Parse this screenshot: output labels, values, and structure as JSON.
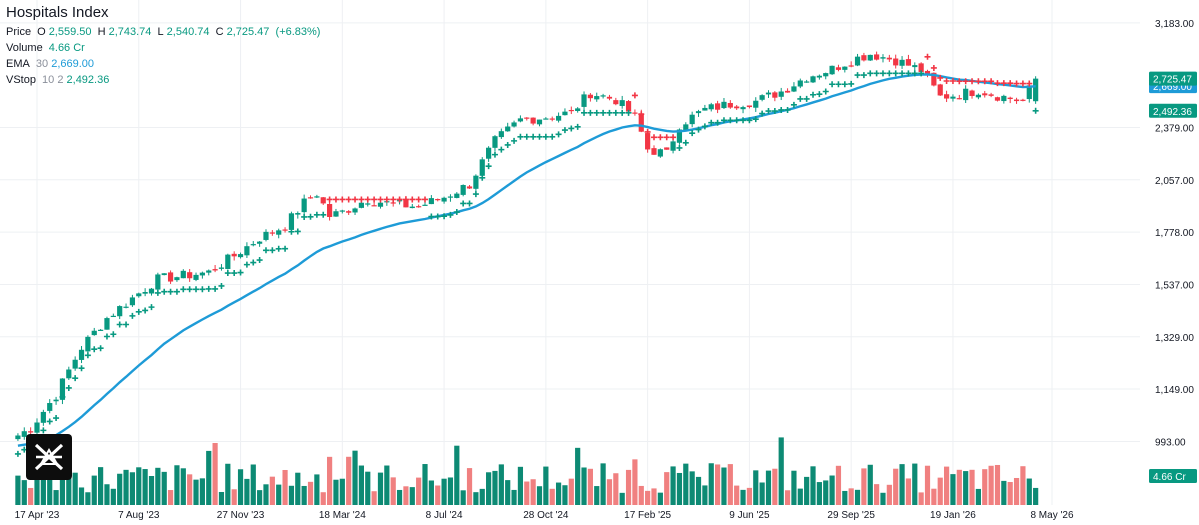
{
  "legend": {
    "title": "Hospitals Index",
    "price_label": "Price",
    "o_key": "O",
    "o_val": "2,559.50",
    "h_key": "H",
    "h_val": "2,743.74",
    "l_key": "L",
    "l_val": "2,540.74",
    "c_key": "C",
    "c_val": "2,725.47",
    "change": "(+6.83%)",
    "volume_label": "Volume",
    "volume_val": "4.66 Cr",
    "ema_label": "EMA",
    "ema_param": "30",
    "ema_val": "2,669.00",
    "vstop_label": "VStop",
    "vstop_param": "10 2",
    "vstop_val": "2,492.36"
  },
  "price_tags": {
    "close": "2,725.47",
    "ema": "2,669.00",
    "vstop": "2,492.36",
    "volume": "4.66 Cr"
  },
  "colors": {
    "up": "#089981",
    "down": "#f23645",
    "vol_up": "#0d8a74",
    "vol_down": "#f08080",
    "ema": "#1e9bd7",
    "grid": "#eef0f3",
    "axis_text": "#131722",
    "logo_bg": "#0d0d0d"
  },
  "logo_icon": "tradingview-logo-icon",
  "chart_data": {
    "type": "candlestick",
    "title": "Hospitals Index",
    "period": "weekly",
    "y_scale": "log",
    "y_ticks": [
      "3,183.00",
      "2,379.00",
      "2,057.00",
      "1,778.00",
      "1,537.00",
      "1,329.00",
      "1,149.00",
      "993.00"
    ],
    "x_ticks": [
      "17 Apr '23",
      "7 Aug '23",
      "27 Nov '23",
      "18 Mar '24",
      "8 Jul '24",
      "28 Oct '24",
      "17 Feb '25",
      "9 Jun '25",
      "29 Sep '25",
      "19 Jan '26",
      "8 May '26"
    ],
    "grid": true,
    "series": [
      {
        "name": "Price",
        "kind": "ohlc",
        "last": {
          "o": 2559.5,
          "h": 2743.74,
          "l": 2540.74,
          "c": 2725.47
        }
      },
      {
        "name": "EMA",
        "kind": "line",
        "period": 30,
        "last": 2669.0
      },
      {
        "name": "VStop",
        "kind": "cross-markers",
        "params": "10 2",
        "last": 2492.36
      },
      {
        "name": "Volume",
        "kind": "bars",
        "last": "4.66 Cr"
      }
    ],
    "path_anchors": [
      [
        "2023-03-27",
        1010
      ],
      [
        "2023-04-10",
        1030
      ],
      [
        "2023-05-08",
        1130
      ],
      [
        "2023-06-05",
        1290
      ],
      [
        "2023-07-03",
        1400
      ],
      [
        "2023-07-31",
        1480
      ],
      [
        "2023-08-28",
        1560
      ],
      [
        "2023-09-25",
        1575
      ],
      [
        "2023-10-23",
        1590
      ],
      [
        "2023-11-20",
        1665
      ],
      [
        "2023-12-18",
        1750
      ],
      [
        "2024-01-15",
        1810
      ],
      [
        "2024-02-05",
        1930
      ],
      [
        "2024-02-19",
        1980
      ],
      [
        "2024-03-04",
        1860
      ],
      [
        "2024-03-18",
        1880
      ],
      [
        "2024-04-15",
        1950
      ],
      [
        "2024-05-13",
        1920
      ],
      [
        "2024-06-10",
        1910
      ],
      [
        "2024-07-08",
        1960
      ],
      [
        "2024-08-05",
        2030
      ],
      [
        "2024-09-02",
        2290
      ],
      [
        "2024-09-30",
        2430
      ],
      [
        "2024-10-28",
        2450
      ],
      [
        "2024-11-25",
        2480
      ],
      [
        "2024-12-16",
        2620
      ],
      [
        "2025-01-13",
        2570
      ],
      [
        "2025-02-03",
        2450
      ],
      [
        "2025-02-17",
        2240
      ],
      [
        "2025-03-10",
        2210
      ],
      [
        "2025-03-24",
        2400
      ],
      [
        "2025-04-21",
        2500
      ],
      [
        "2025-05-19",
        2540
      ],
      [
        "2025-06-16",
        2560
      ],
      [
        "2025-07-14",
        2630
      ],
      [
        "2025-08-11",
        2740
      ],
      [
        "2025-09-08",
        2800
      ],
      [
        "2025-09-29",
        2870
      ],
      [
        "2025-10-20",
        2920
      ],
      [
        "2025-11-17",
        2870
      ],
      [
        "2025-12-15",
        2790
      ],
      [
        "2026-01-05",
        2590
      ],
      [
        "2026-01-26",
        2610
      ],
      [
        "2026-02-16",
        2640
      ],
      [
        "2026-03-09",
        2600
      ],
      [
        "2026-04-06",
        2560
      ],
      [
        "2026-04-20",
        2725.47
      ]
    ],
    "ema_last": 2669.0,
    "vstop_last": 2492.36
  }
}
